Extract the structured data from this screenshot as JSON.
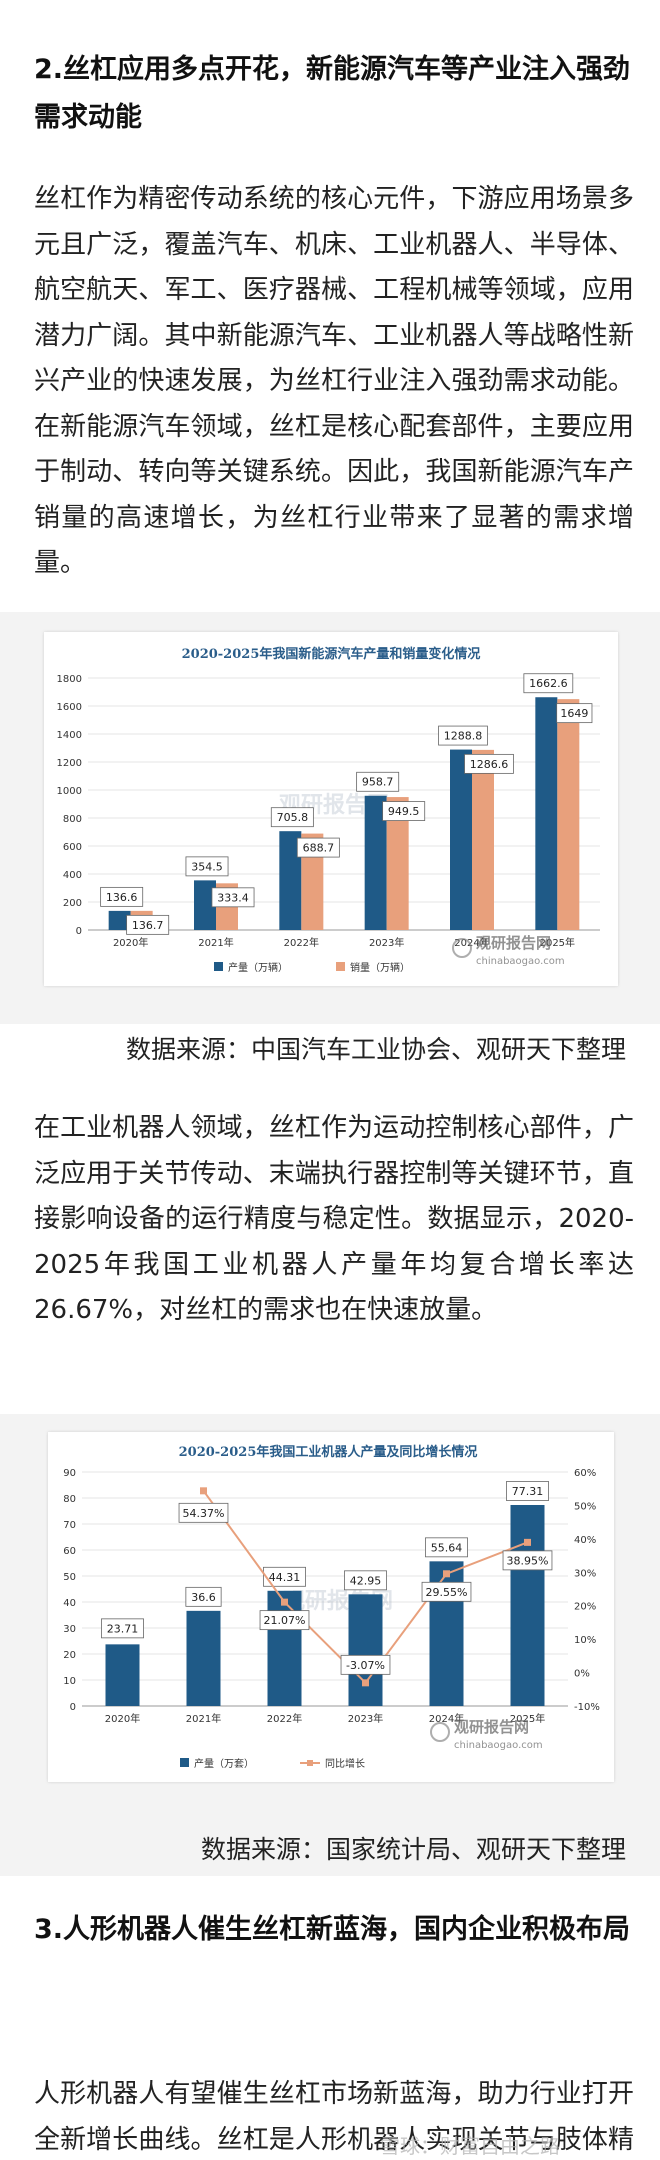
{
  "section2": {
    "heading": "2.丝杠应用多点开花，新能源汽车等产业注入强劲需求动能",
    "paragraph": "丝杠作为精密传动系统的核心元件，下游应用场景多元且广泛，覆盖汽车、机床、工业机器人、半导体、航空航天、军工、医疗器械、工程机械等领域，应用潜力广阔。其中新能源汽车、工业机器人等战略性新兴产业的快速发展，为丝杠行业注入强劲需求动能。在新能源汽车领域，丝杠是核心配套部件，主要应用于制动、转向等关键系统。因此，我国新能源汽车产销量的高速增长，为丝杠行业带来了显著的需求增量。"
  },
  "chart1": {
    "source": "数据来源：中国汽车工业协会、观研天下整理",
    "watermark_center": "观研报告网",
    "watermark_brand": "观研报告网",
    "watermark_url": "chinabaogao.com"
  },
  "paragraph2": "在工业机器人领域，丝杠作为运动控制核心部件，广泛应用于关节传动、末端执行器控制等关键环节，直接影响设备的运行精度与稳定性。数据显示，2020-2025年我国工业机器人产量年均复合增长率达26.67%，对丝杠的需求也在快速放量。",
  "chart2": {
    "source": "数据来源：国家统计局、观研天下整理",
    "watermark_center": "观研报告网",
    "watermark_brand": "观研报告网",
    "watermark_url": "chinabaogao.com"
  },
  "section3": {
    "heading": "3.人形机器人催生丝杠新蓝海，国内企业积极布局",
    "paragraph": "人形机器人有望催生丝杠市场新蓝海，助力行业打开全新增长曲线。丝杠是人形机器人实现关节与肢体精密运动控制的关键组件，主流应用滚珠"
  },
  "footer_overlay": "雪球：财富自由之路",
  "colors": {
    "bar_blue": "#1f5a87",
    "bar_orange": "#e8a07c",
    "line_orange": "#e8a07c",
    "title_blue": "#2a5d8a"
  },
  "chart_data": [
    {
      "type": "bar",
      "title": "2020-2025年我国新能源汽车产量和销量变化情况",
      "categories": [
        "2020年",
        "2021年",
        "2022年",
        "2023年",
        "2024年",
        "2025年"
      ],
      "series": [
        {
          "name": "产量（万辆）",
          "values": [
            136.6,
            354.5,
            705.8,
            958.7,
            1288.8,
            1662.6
          ]
        },
        {
          "name": "销量（万辆）",
          "values": [
            136.7,
            333.4,
            688.7,
            949.5,
            1286.6,
            1649
          ]
        }
      ],
      "yticks": [
        "0",
        "200",
        "400",
        "600",
        "800",
        "1000",
        "1200",
        "1400",
        "1600",
        "1800"
      ],
      "ylim": [
        0,
        1800
      ],
      "legend": "bottom"
    },
    {
      "type": "bar",
      "title": "2020-2025年我国工业机器人产量及同比增长情况",
      "categories": [
        "2020年",
        "2021年",
        "2022年",
        "2023年",
        "2024年",
        "2025年"
      ],
      "series": [
        {
          "name": "产量（万套）",
          "values": [
            23.71,
            36.6,
            44.31,
            42.95,
            55.64,
            77.31
          ]
        },
        {
          "name": "同比增长",
          "values": [
            null,
            54.37,
            21.07,
            -3.07,
            29.55,
            38.95
          ],
          "labels": [
            "",
            "54.37%",
            "21.07%",
            "-3.07%",
            "29.55%",
            "38.95%"
          ],
          "axis": "right",
          "type": "line"
        }
      ],
      "yticks": [
        "0",
        "10",
        "20",
        "30",
        "40",
        "50",
        "60",
        "70",
        "80",
        "90"
      ],
      "ylim": [
        0,
        90
      ],
      "y2ticks": [
        "-10%",
        "0%",
        "10%",
        "20%",
        "30%",
        "40%",
        "50%",
        "60%"
      ],
      "y2lim": [
        -10,
        60
      ],
      "legend": "bottom"
    }
  ]
}
